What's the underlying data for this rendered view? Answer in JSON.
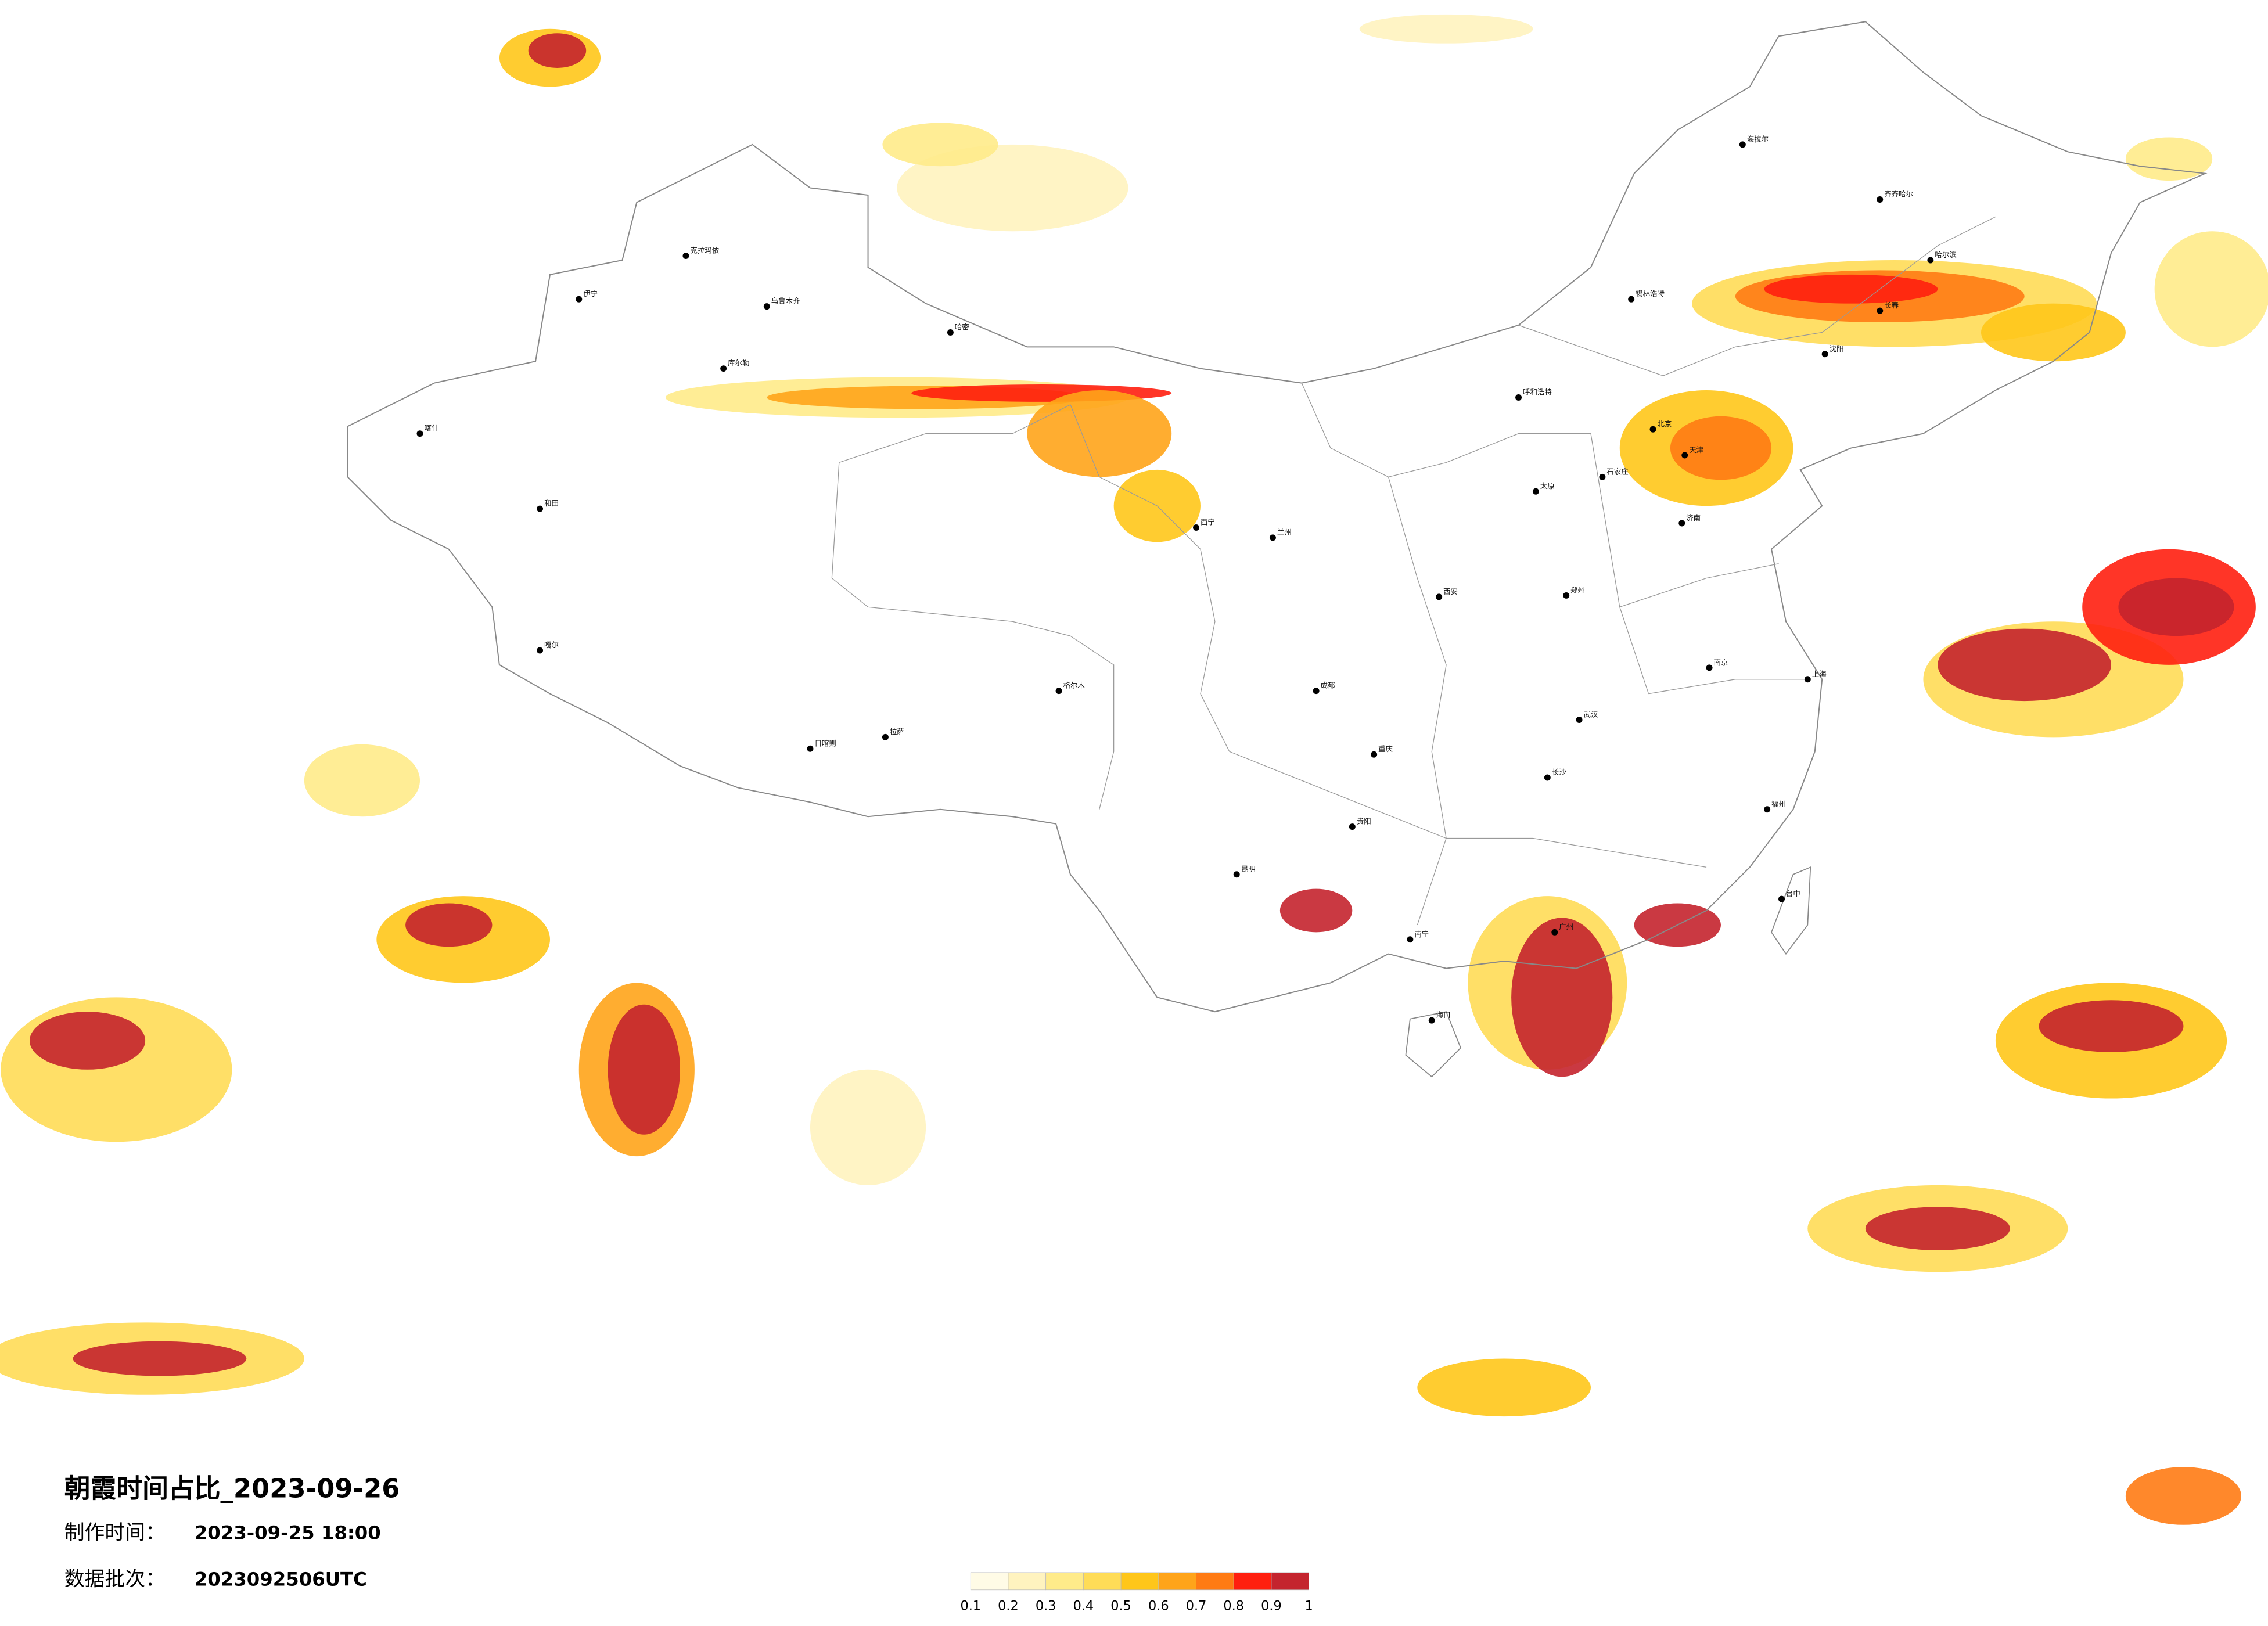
{
  "title": "朝霞时间占比_2023-09-26",
  "made_time": {
    "label": "制作时间：",
    "value": "2023-09-25 18:00"
  },
  "batch": {
    "label": "数据批次：",
    "value": "2023092506UTC"
  },
  "legend": {
    "ticks": [
      0.1,
      0.2,
      0.3,
      0.4,
      0.5,
      0.6,
      0.7,
      0.8,
      0.9,
      1
    ],
    "colors": [
      "#fffbe6",
      "#fff3bf",
      "#ffeb8a",
      "#ffdc57",
      "#ffc61a",
      "#ffa41a",
      "#ff7b14",
      "#ff1f0f",
      "#c4242e"
    ]
  },
  "cities": [
    "克拉玛依",
    "伊宁",
    "乌鲁木齐",
    "喀什",
    "和田",
    "库尔勒",
    "海拉尔",
    "齐齐哈尔",
    "哈尔滨",
    "长春",
    "沈阳",
    "呼和浩特",
    "北京",
    "天津",
    "石家庄",
    "太原",
    "济南",
    "郑州",
    "西安",
    "兰州",
    "西宁",
    "拉萨",
    "日喀则",
    "成都",
    "重庆",
    "贵阳",
    "昆明",
    "南宁",
    "广州",
    "海口",
    "武汉",
    "长沙",
    "南京",
    "上海",
    "福州",
    "台中",
    "哈密",
    "格尔木",
    "锡林浩特",
    "嘎尔"
  ]
}
